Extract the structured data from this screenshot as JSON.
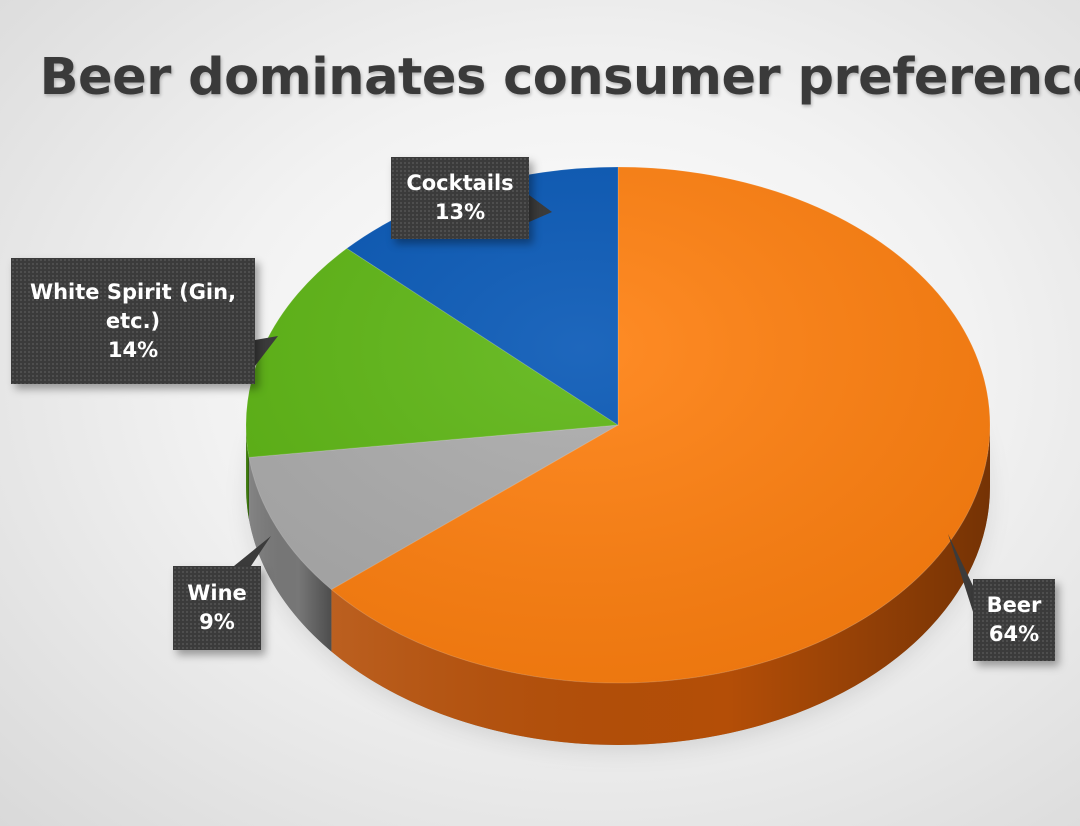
{
  "chart_data": {
    "type": "pie",
    "title": "Beer dominates consumer preference",
    "slices": [
      {
        "label": "Beer",
        "value": 64,
        "display": "64%",
        "color": "#ff7f0e",
        "side_color": "#b44e07"
      },
      {
        "label": "Wine",
        "value": 9,
        "display": "9%",
        "color": "#ababab",
        "side_color": "#777777"
      },
      {
        "label_lines": [
          "White Spirit (Gin,",
          "etc.)"
        ],
        "label": "White Spirit (Gin, etc.)",
        "value": 14,
        "display": "14%",
        "color": "#5cb512",
        "side_color": "#3c7a0a"
      },
      {
        "label": "Cocktails",
        "value": 13,
        "display": "13%",
        "color": "#0556b5",
        "side_color": "#033a7a"
      }
    ],
    "start_angle_deg": 0,
    "direction": "clockwise",
    "style": "3d",
    "legend": "none",
    "data_labels": "callout"
  }
}
